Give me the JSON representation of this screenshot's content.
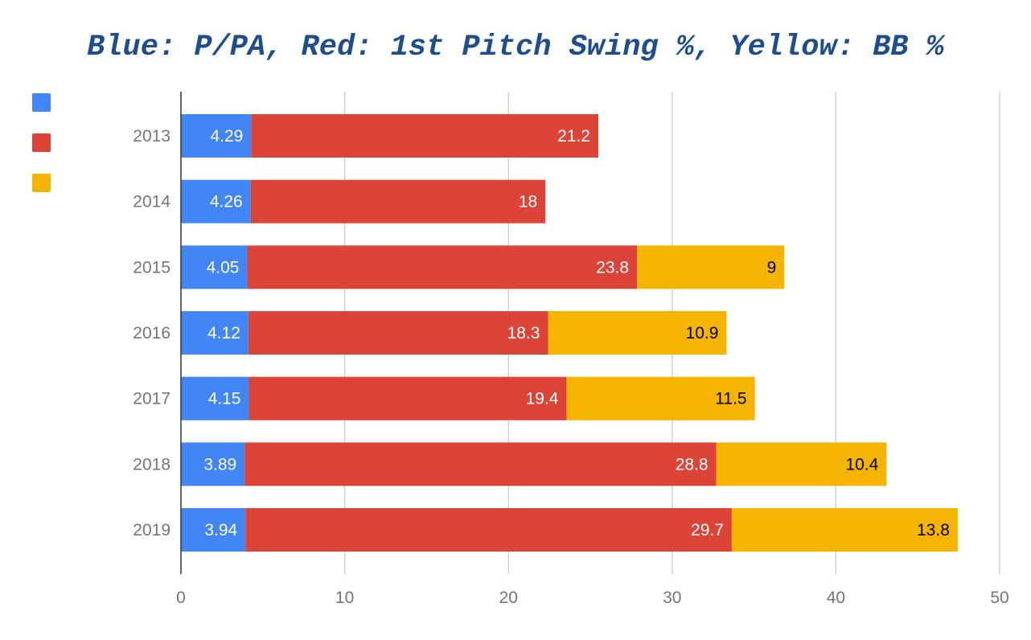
{
  "chart_data": {
    "type": "bar",
    "orientation": "horizontal",
    "stacked": true,
    "title": "Blue: P/PA, Red: 1st Pitch Swing %, Yellow: BB %",
    "xlabel": "",
    "ylabel": "",
    "xlim": [
      0,
      50
    ],
    "x_ticks": [
      0,
      10,
      20,
      30,
      40,
      50
    ],
    "grid": true,
    "legend_position": "left",
    "categories": [
      "2013",
      "2014",
      "2015",
      "2016",
      "2017",
      "2018",
      "2019"
    ],
    "series": [
      {
        "color": "#4285f4",
        "label_color": "#ffffff",
        "values": [
          4.29,
          4.26,
          4.05,
          4.12,
          4.15,
          3.89,
          3.94
        ]
      },
      {
        "color": "#db4437",
        "label_color": "#ffffff",
        "values": [
          21.2,
          18,
          23.8,
          18.3,
          19.4,
          28.8,
          29.7
        ]
      },
      {
        "color": "#f4b400",
        "label_color": "#000000",
        "values": [
          null,
          null,
          9,
          10.9,
          11.5,
          10.4,
          13.8
        ]
      }
    ]
  }
}
